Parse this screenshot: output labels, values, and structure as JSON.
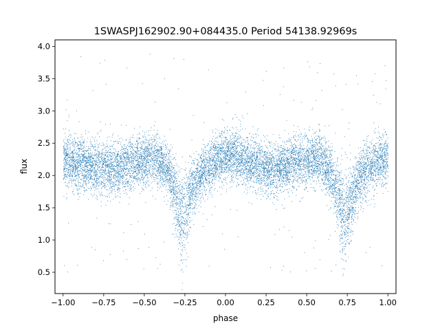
{
  "chart_data": {
    "type": "scatter",
    "title": "1SWASPJ162902.90+084435.0 Period 54138.92969s",
    "xlabel": "phase",
    "ylabel": "flux",
    "xlim": [
      -1.05,
      1.05
    ],
    "ylim": [
      0.17,
      4.1
    ],
    "xticks": [
      -1.0,
      -0.75,
      -0.5,
      -0.25,
      0.0,
      0.25,
      0.5,
      0.75,
      1.0
    ],
    "xtick_labels": [
      "−1.00",
      "−0.75",
      "−0.50",
      "−0.25",
      "0.00",
      "0.25",
      "0.50",
      "0.75",
      "1.00"
    ],
    "yticks": [
      0.5,
      1.0,
      1.5,
      2.0,
      2.5,
      3.0,
      3.5,
      4.0
    ],
    "ytick_labels": [
      "0.5",
      "1.0",
      "1.5",
      "2.0",
      "2.5",
      "3.0",
      "3.5",
      "4.0"
    ],
    "grid": false,
    "point_color": "#1f77b4",
    "phase_range": [
      -1.0,
      1.0
    ],
    "flux_profile": [
      {
        "phase": -1.0,
        "flux": 2.22
      },
      {
        "phase": -0.9,
        "flux": 2.2
      },
      {
        "phase": -0.8,
        "flux": 2.12
      },
      {
        "phase": -0.7,
        "flux": 2.1
      },
      {
        "phase": -0.6,
        "flux": 2.18
      },
      {
        "phase": -0.5,
        "flux": 2.24
      },
      {
        "phase": -0.42,
        "flux": 2.28
      },
      {
        "phase": -0.35,
        "flux": 2.05
      },
      {
        "phase": -0.3,
        "flux": 1.6
      },
      {
        "phase": -0.27,
        "flux": 1.35
      },
      {
        "phase": -0.24,
        "flux": 1.5
      },
      {
        "phase": -0.2,
        "flux": 1.85
      },
      {
        "phase": -0.15,
        "flux": 2.05
      },
      {
        "phase": -0.05,
        "flux": 2.25
      },
      {
        "phase": 0.05,
        "flux": 2.32
      },
      {
        "phase": 0.15,
        "flux": 2.22
      },
      {
        "phase": 0.25,
        "flux": 2.1
      },
      {
        "phase": 0.3,
        "flux": 2.08
      },
      {
        "phase": 0.4,
        "flux": 2.18
      },
      {
        "phase": 0.5,
        "flux": 2.24
      },
      {
        "phase": 0.58,
        "flux": 2.28
      },
      {
        "phase": 0.65,
        "flux": 2.05
      },
      {
        "phase": 0.7,
        "flux": 1.6
      },
      {
        "phase": 0.73,
        "flux": 1.35
      },
      {
        "phase": 0.76,
        "flux": 1.5
      },
      {
        "phase": 0.8,
        "flux": 1.85
      },
      {
        "phase": 0.85,
        "flux": 2.05
      },
      {
        "phase": 0.95,
        "flux": 2.25
      },
      {
        "phase": 1.0,
        "flux": 2.22
      }
    ],
    "scatter_sigma": 0.2,
    "outlier_range": [
      0.4,
      3.9
    ]
  }
}
